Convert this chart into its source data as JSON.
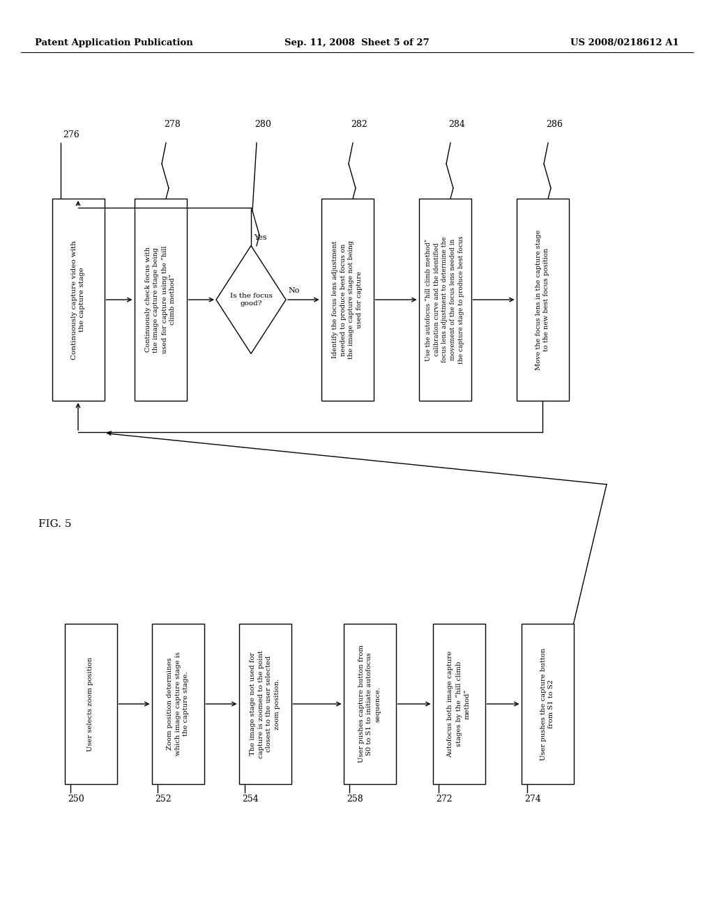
{
  "header_left": "Patent Application Publication",
  "header_center": "Sep. 11, 2008  Sheet 5 of 27",
  "header_right": "US 2008/0218612 A1",
  "fig_label": "FIG. 5",
  "top_boxes": [
    {
      "id": "276",
      "text": "Continuously capture video with\nthe capture stage"
    },
    {
      "id": "278",
      "text": "Continuously check focus with\nthe image capture stage being\nused for capture using the “hill\nclimb method”"
    },
    {
      "id": "280",
      "text": "Is the focus\ngood?",
      "type": "diamond"
    },
    {
      "id": "282",
      "text": "Identify the focus lens adjustment\nneeded to produce best focus on\nthe image capture stage not being\nused for capture"
    },
    {
      "id": "284",
      "text": "Use the autofocus “hill climb method”\ncalibration curve and the identified\nfocus lens adjustment to determine the\nmovement of the focus lens needed in\nthe capture stage to produce best focus"
    },
    {
      "id": "286",
      "text": "Move the focus lens in the capture stage\nto the new best focus position"
    }
  ],
  "bottom_boxes": [
    {
      "id": "250",
      "text": "User selects zoom position"
    },
    {
      "id": "252",
      "text": "Zoom position determines\nwhich image capture stage is\nthe capture stage."
    },
    {
      "id": "254",
      "text": "The image stage not used for\ncapture is zoomed to the point\nclosest to the user selected\nzoom position."
    },
    {
      "id": "258",
      "text": "User pushes capture button from\nS0 to S1 to initiate autofocus\nsequence."
    },
    {
      "id": "272",
      "text": "Autofocus both image capture\nstages by the “hill climb\nmethod”"
    },
    {
      "id": "274",
      "text": "User pushes the capture button\nfrom S1 to S2"
    }
  ]
}
